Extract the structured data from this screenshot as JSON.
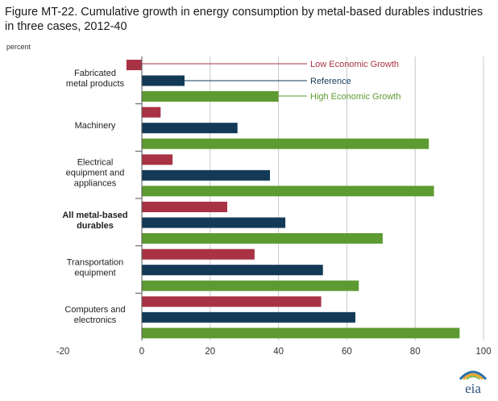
{
  "title": "Figure MT-22. Cumulative growth in energy consumption by metal-based durables industries in three cases, 2012-40",
  "unit_label": "percent",
  "logo_text": "eia",
  "colors": {
    "low": "#a83344",
    "reference": "#123a57",
    "high": "#5e9a32",
    "grid": "#c8c8c8",
    "axis": "#555555"
  },
  "chart_data": {
    "type": "bar",
    "orientation": "horizontal",
    "xlim": [
      -20,
      100
    ],
    "xticks": [
      -20,
      0,
      20,
      40,
      60,
      80,
      100
    ],
    "grid": true,
    "categories": [
      "Fabricated metal products",
      "Machinery",
      "Electrical equipment and appliances",
      "All metal-based durables",
      "Transportation equipment",
      "Computers and electronics"
    ],
    "bold_categories": [
      "All metal-based durables"
    ],
    "series": [
      {
        "name": "Low Economic Growth",
        "key": "low",
        "values": [
          -4.5,
          5.5,
          9,
          25,
          33,
          52.5
        ]
      },
      {
        "name": "Reference",
        "key": "reference",
        "values": [
          12.5,
          28,
          37.5,
          42,
          53,
          62.5
        ]
      },
      {
        "name": "High Economic Growth",
        "key": "high",
        "values": [
          40,
          84,
          85.5,
          70.5,
          63.5,
          93
        ]
      }
    ]
  }
}
